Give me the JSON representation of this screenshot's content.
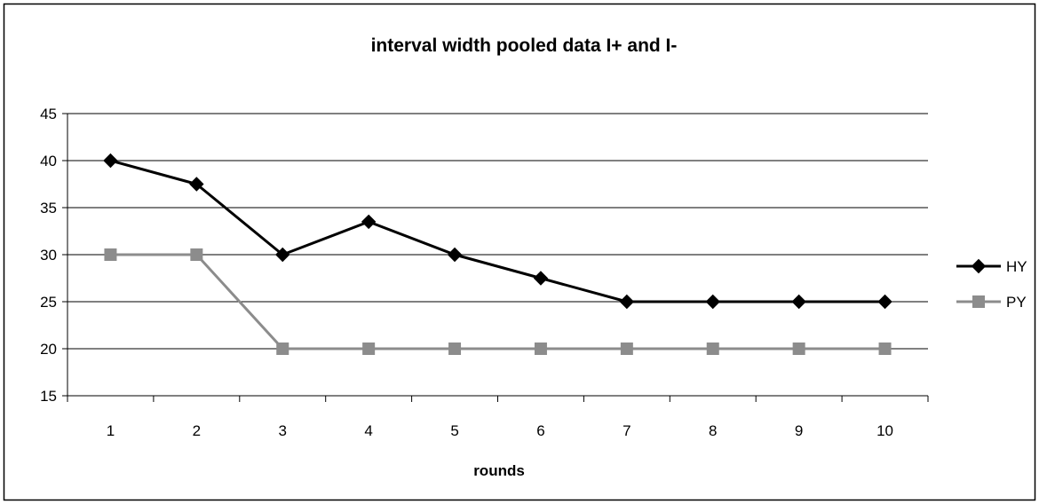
{
  "chart_data": {
    "type": "line",
    "title": "interval width pooled data I+ and I-",
    "xlabel": "rounds",
    "ylabel": "",
    "categories": [
      "1",
      "2",
      "3",
      "4",
      "5",
      "6",
      "7",
      "8",
      "9",
      "10"
    ],
    "ylim": [
      15,
      45
    ],
    "yticks": [
      "15",
      "20",
      "25",
      "30",
      "35",
      "40",
      "45"
    ],
    "grid": "horizontal",
    "legend_position": "right",
    "series": [
      {
        "name": "HY",
        "color": "#000000",
        "marker": "diamond",
        "values": [
          40,
          37.5,
          30,
          33.5,
          30,
          27.5,
          25,
          25,
          25,
          25
        ]
      },
      {
        "name": "PY",
        "color": "#8c8c8c",
        "marker": "square",
        "values": [
          30,
          30,
          20,
          20,
          20,
          20,
          20,
          20,
          20,
          20
        ]
      }
    ]
  }
}
